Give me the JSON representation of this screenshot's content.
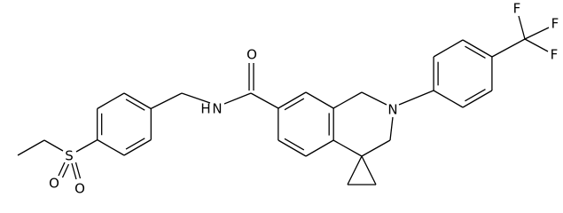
{
  "atoms": [
    {
      "label": "S"
    },
    {
      "label": "O"
    },
    {
      "label": "O"
    },
    {
      "label": "H"
    },
    {
      "label": "N"
    },
    {
      "label": "O"
    },
    {
      "label": "N"
    },
    {
      "label": "F"
    },
    {
      "label": "F"
    },
    {
      "label": "F"
    }
  ]
}
